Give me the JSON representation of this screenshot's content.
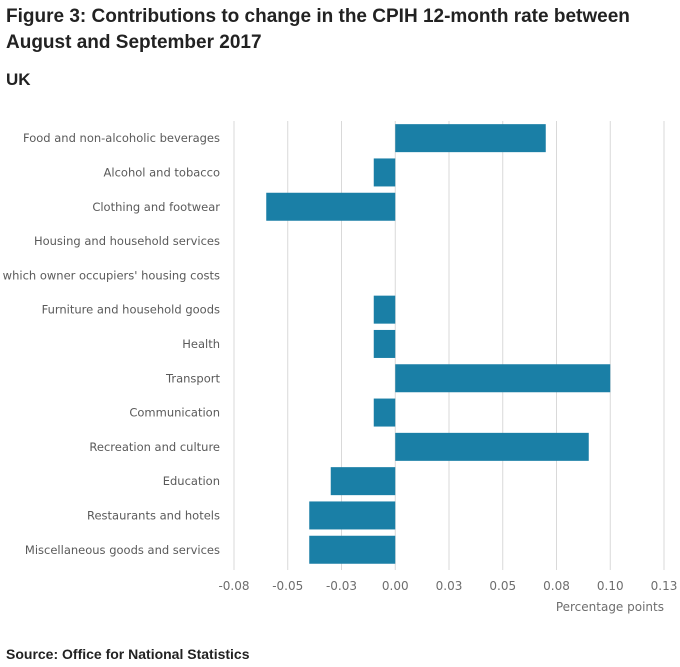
{
  "header": {
    "title": "Figure 3: Contributions to change in the CPIH 12-month rate between August and September 2017",
    "subtitle": "UK"
  },
  "footer": {
    "source": "Source: Office for National Statistics"
  },
  "colors": {
    "bar": "#1a7fa6",
    "grid": "#d9d9d9",
    "tick_text": "#6e6e6e",
    "category_text": "#5a5a5a"
  },
  "chart_data": {
    "type": "bar",
    "orientation": "horizontal",
    "title": "Figure 3: Contributions to change in the CPIH 12-month rate between August and September 2017",
    "subtitle": "UK",
    "xlabel": "Percentage points",
    "ylabel": "",
    "xlim": [
      -0.075,
      0.125
    ],
    "x_ticks": [
      -0.075,
      -0.05,
      -0.025,
      0,
      0.025,
      0.05,
      0.075,
      0.1,
      0.125
    ],
    "x_tick_labels": [
      "-0.08",
      "-0.05",
      "-0.03",
      "0.00",
      "0.03",
      "0.05",
      "0.08",
      "0.10",
      "0.13"
    ],
    "grid": true,
    "categories": [
      "Food and non-alcoholic beverages",
      "Alcohol and tobacco",
      "Clothing and footwear",
      "Housing and household services",
      "of which owner occupiers' housing costs",
      "Furniture and household goods",
      "Health",
      "Transport",
      "Communication",
      "Recreation and culture",
      "Education",
      "Restaurants and hotels",
      "Miscellaneous goods and services"
    ],
    "values": [
      0.07,
      -0.01,
      -0.06,
      0,
      0,
      -0.01,
      -0.01,
      0.1,
      -0.01,
      0.09,
      -0.03,
      -0.04,
      -0.04
    ]
  }
}
